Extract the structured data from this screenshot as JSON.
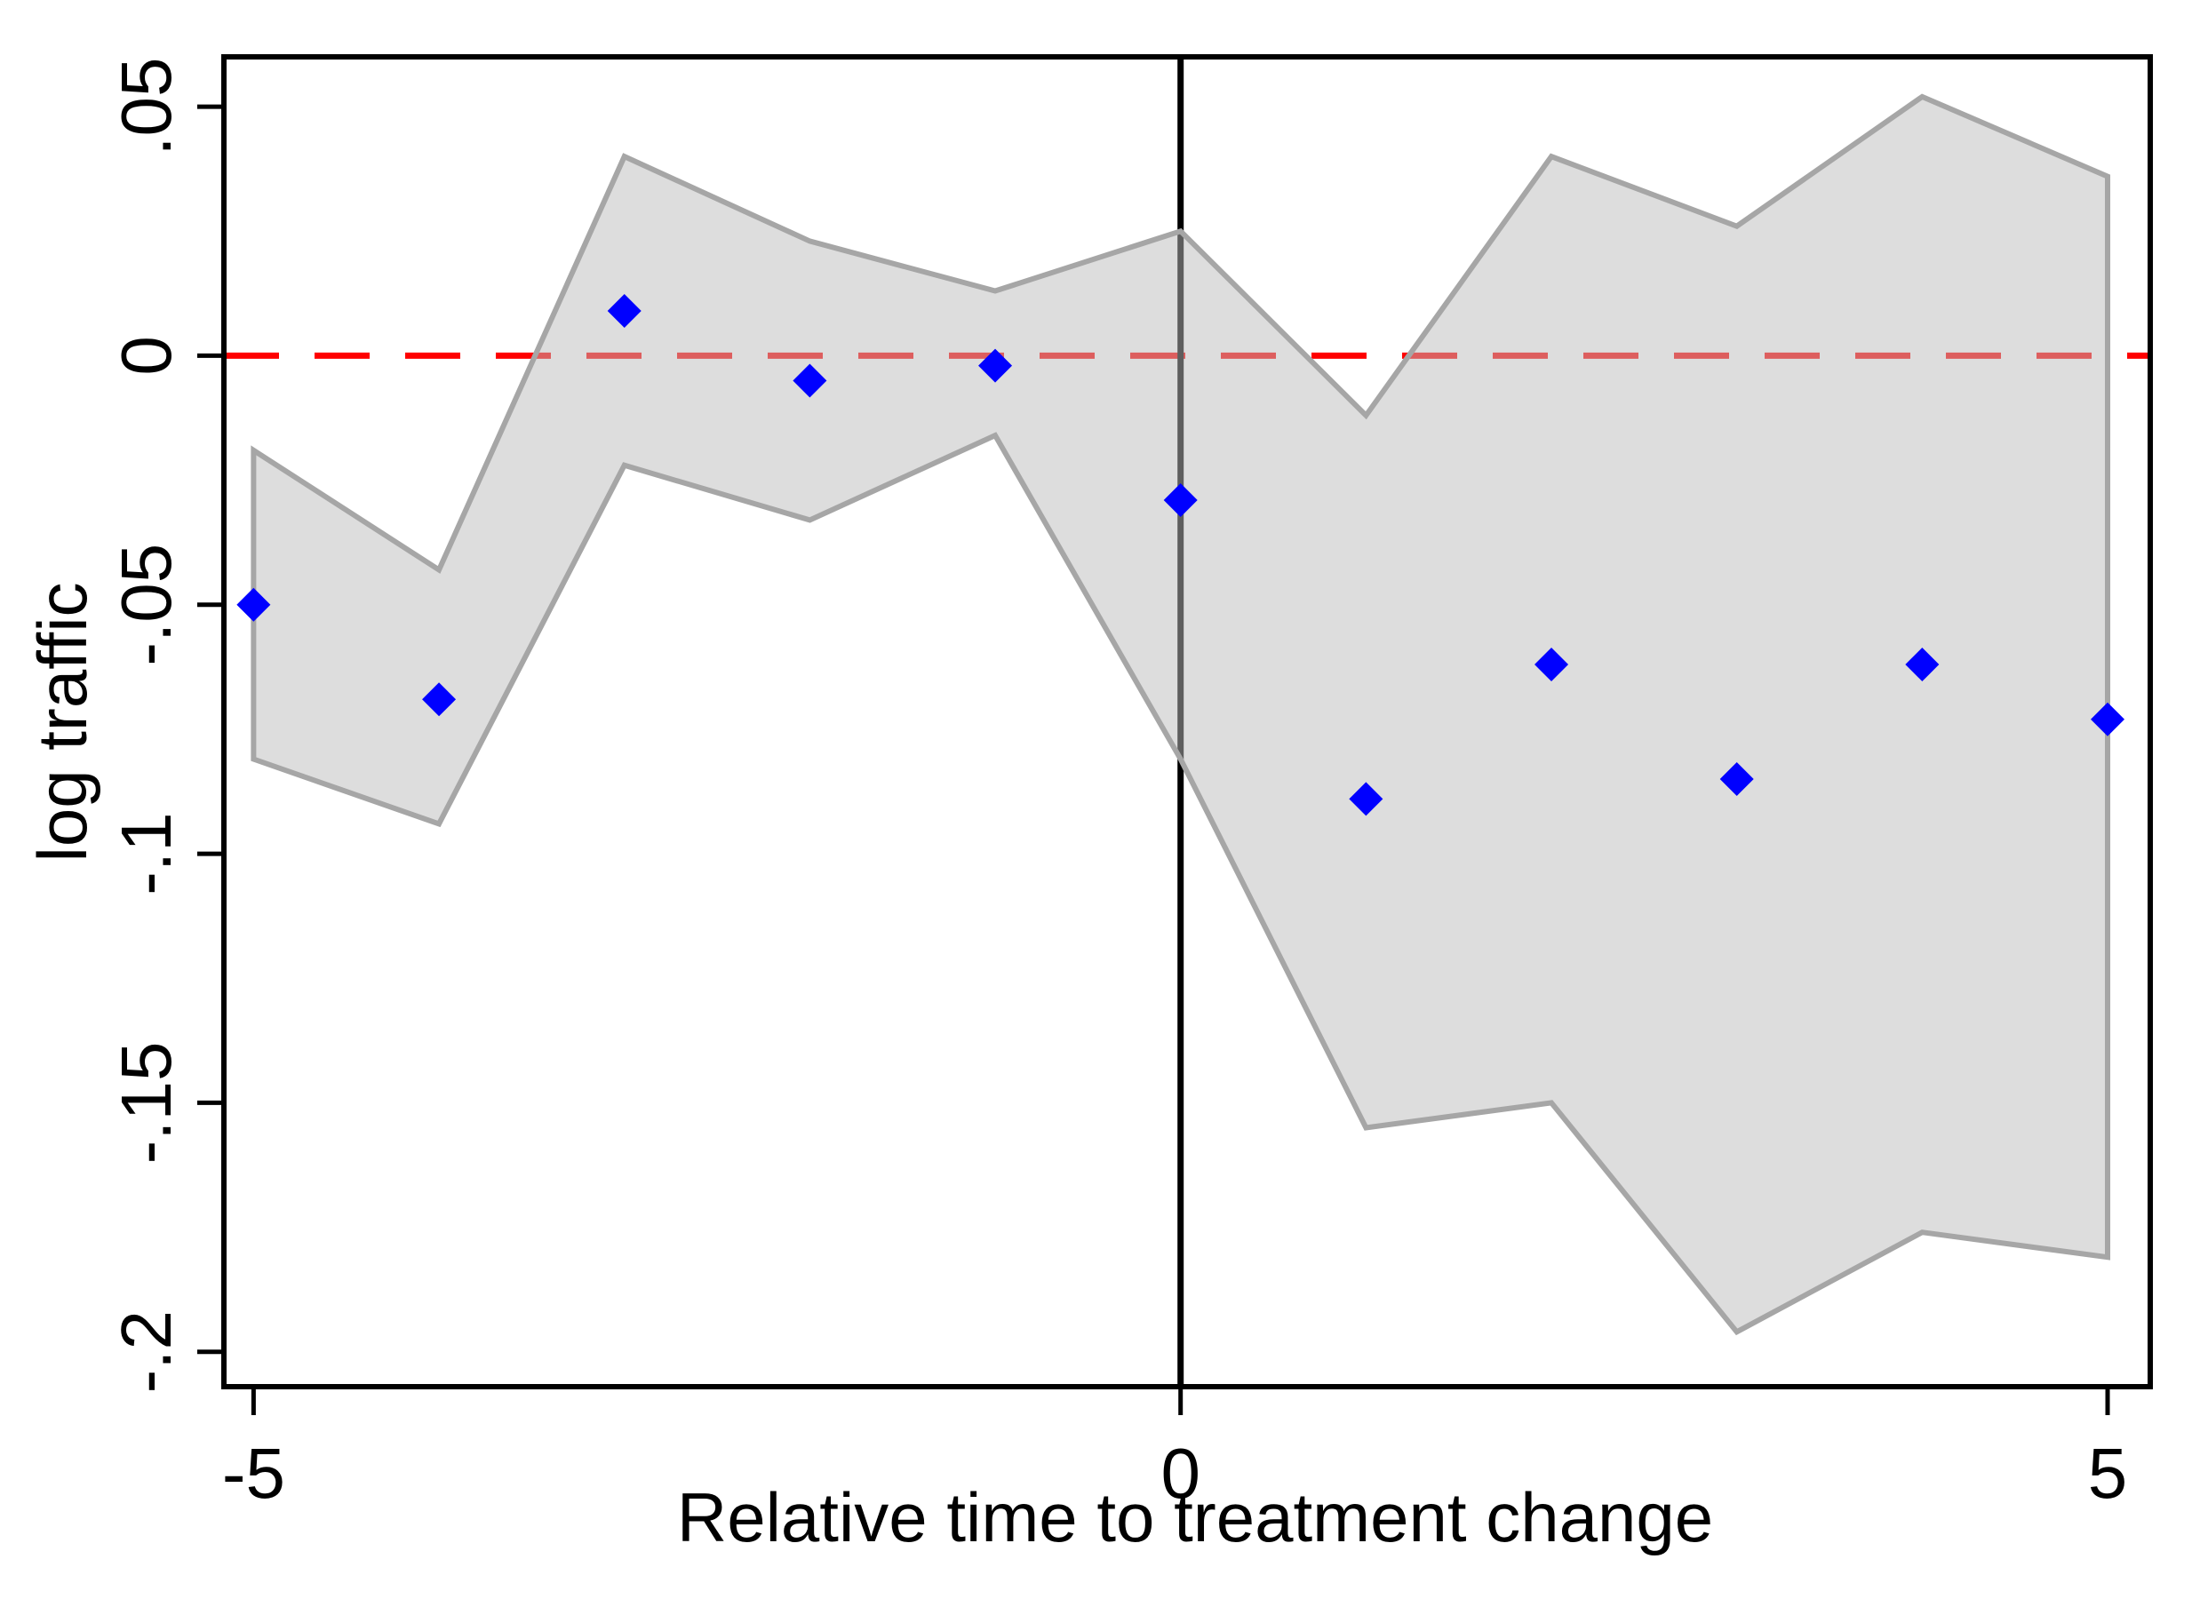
{
  "figure": {
    "background": "#ffffff"
  },
  "chart_data": {
    "type": "scatter",
    "subtype": "event-study-with-confidence-band",
    "title": "",
    "xlabel": "Relative time to treatment change",
    "ylabel": "log traffic",
    "x": [
      -5,
      -4,
      -3,
      -2,
      -1,
      0,
      1,
      2,
      3,
      4,
      5
    ],
    "series": [
      {
        "name": "point-estimate",
        "marker": "diamond",
        "color": "#0000ff",
        "values": [
          -0.05,
          -0.069,
          0.009,
          -0.005,
          -0.002,
          -0.029,
          -0.089,
          -0.062,
          -0.085,
          -0.062,
          -0.073
        ]
      },
      {
        "name": "ci-upper",
        "values": [
          -0.019,
          -0.043,
          0.04,
          0.023,
          0.013,
          0.025,
          -0.012,
          0.04,
          0.026,
          0.052,
          0.036
        ]
      },
      {
        "name": "ci-lower",
        "values": [
          -0.081,
          -0.094,
          -0.022,
          -0.033,
          -0.016,
          -0.081,
          -0.155,
          -0.15,
          -0.196,
          -0.176,
          -0.181
        ]
      }
    ],
    "band": {
      "fill": "#bbbbbb",
      "fill_opacity": 0.5,
      "stroke": "#a6a6a6"
    },
    "reference_lines": [
      {
        "axis": "y",
        "value": 0,
        "style": "dashed",
        "color": "#ff0000",
        "name": "zero-reference-line"
      },
      {
        "axis": "x",
        "value": 0,
        "style": "solid",
        "color": "#000000",
        "name": "treatment-time-line"
      }
    ],
    "x_ticks": [
      {
        "value": -5,
        "label": "-5"
      },
      {
        "value": 0,
        "label": "0"
      },
      {
        "value": 5,
        "label": "5"
      }
    ],
    "y_ticks": [
      {
        "value": 0.05,
        "label": ".05"
      },
      {
        "value": 0,
        "label": "0"
      },
      {
        "value": -0.05,
        "label": "-.05"
      },
      {
        "value": -0.1,
        "label": "-.1"
      },
      {
        "value": -0.15,
        "label": "-.15"
      },
      {
        "value": -0.2,
        "label": "-.2"
      }
    ],
    "x_range": [
      -5.16,
      5.23
    ],
    "y_range": [
      -0.207,
      0.06
    ],
    "grid": false,
    "legend": "none"
  }
}
